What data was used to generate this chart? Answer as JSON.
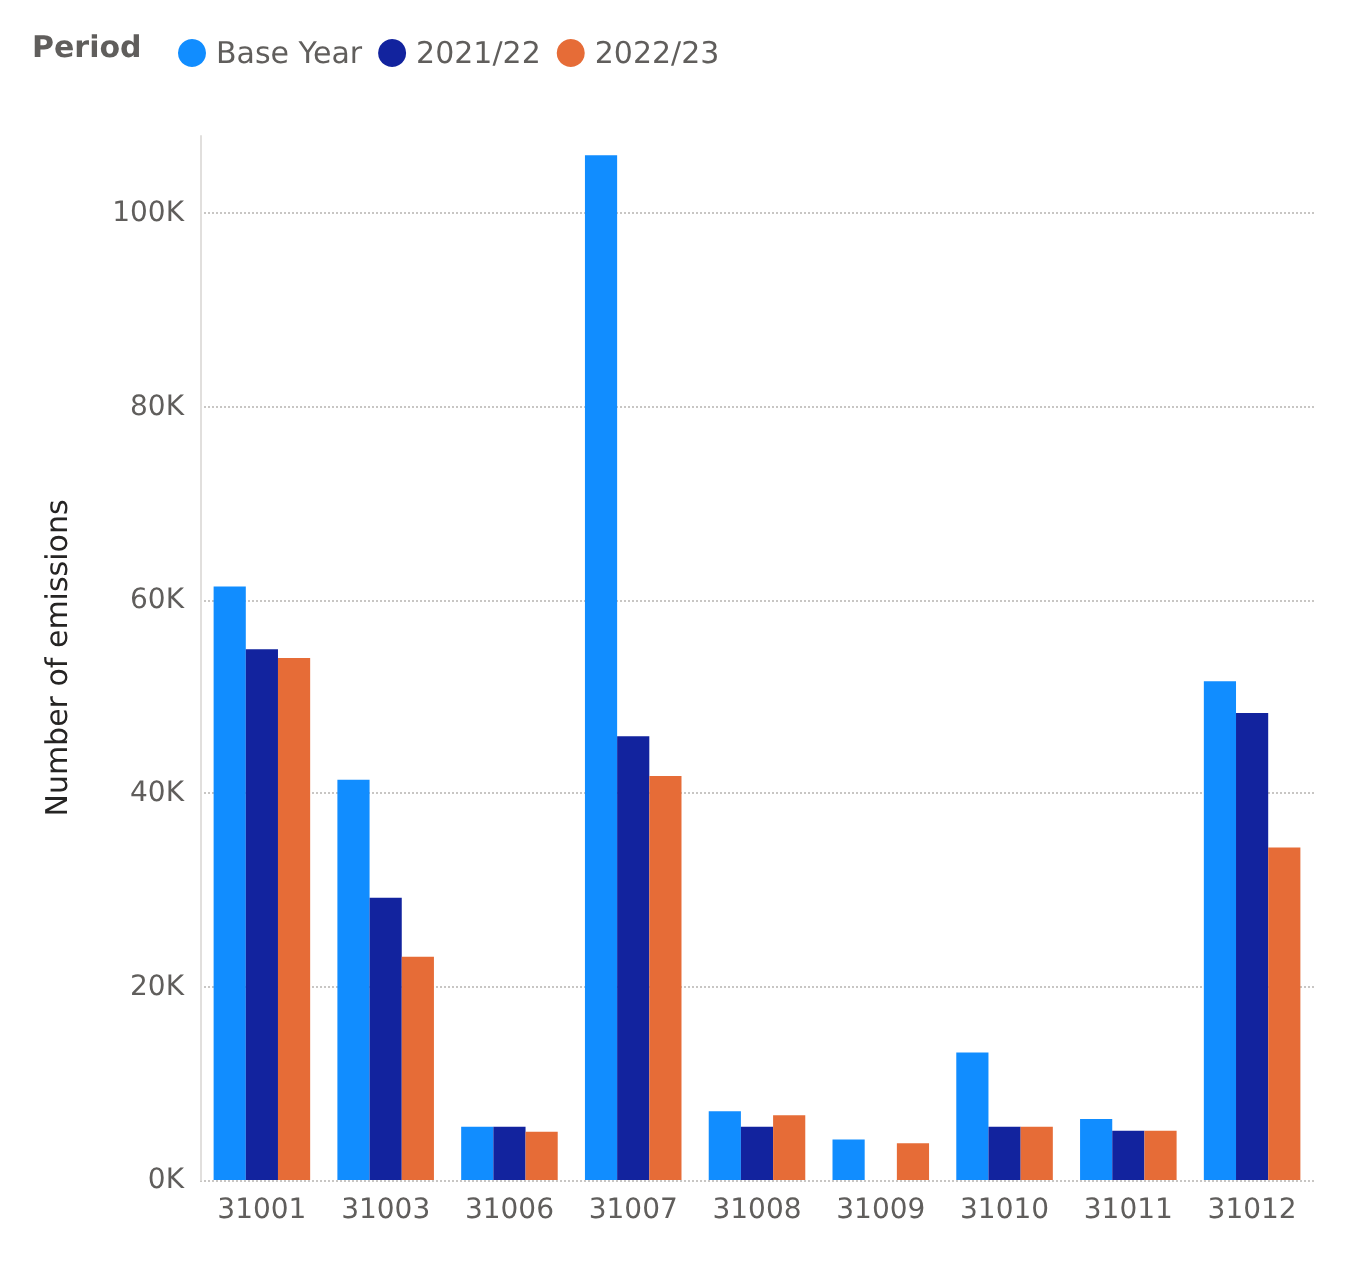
{
  "chart_data": {
    "type": "bar",
    "ylabel": "Number of emissions",
    "legend_title": "Period",
    "legend": "top left",
    "grid": "y",
    "categories": [
      "31001",
      "31003",
      "31006",
      "31007",
      "31008",
      "31009",
      "31010",
      "31011",
      "31012"
    ],
    "ylim": [
      0,
      108000
    ],
    "yticks": [
      {
        "value": 0,
        "label": "0K"
      },
      {
        "value": 20000,
        "label": "20K"
      },
      {
        "value": 40000,
        "label": "40K"
      },
      {
        "value": 60000,
        "label": "60K"
      },
      {
        "value": 80000,
        "label": "80K"
      },
      {
        "value": 100000,
        "label": "100K"
      }
    ],
    "series": [
      {
        "name": "Base Year",
        "color": "#118dff",
        "values": [
          61400,
          41400,
          5500,
          106000,
          7100,
          4200,
          13200,
          6300,
          51600
        ]
      },
      {
        "name": "2021/22",
        "color": "#12239e",
        "values": [
          54900,
          29200,
          5500,
          45900,
          5500,
          null,
          5500,
          5100,
          48300
        ]
      },
      {
        "name": "2022/23",
        "color": "#e66c37",
        "values": [
          54000,
          23100,
          5000,
          41800,
          6700,
          3800,
          5500,
          5100,
          34400
        ]
      }
    ]
  }
}
